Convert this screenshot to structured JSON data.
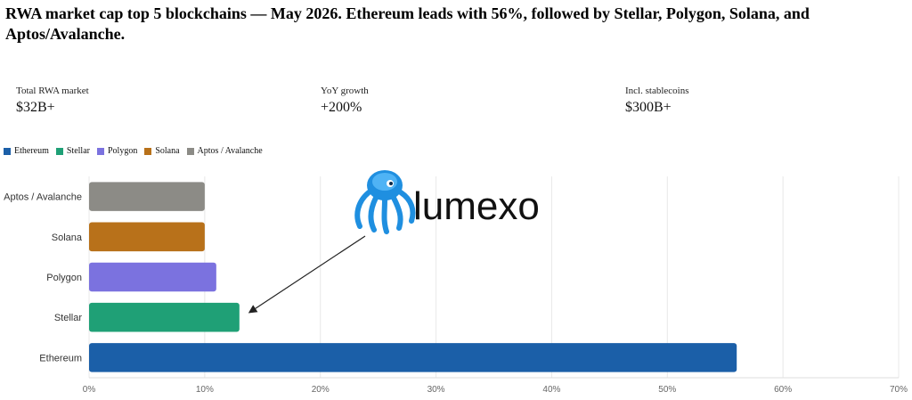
{
  "header": {
    "title": "RWA market cap top 5 blockchains — May 2026. Ethereum leads with 56%, followed by Stellar, Polygon, Solana, and Aptos/Avalanche."
  },
  "stats": [
    {
      "label": "Total RWA market",
      "value": "$32B+"
    },
    {
      "label": "YoY growth",
      "value": "+200%"
    },
    {
      "label": "Incl. stablecoins",
      "value": "$300B+"
    }
  ],
  "logo": {
    "text": "lumexo"
  },
  "chart_data": {
    "type": "bar",
    "orientation": "horizontal",
    "categories": [
      "Ethereum",
      "Stellar",
      "Polygon",
      "Solana",
      "Aptos / Avalanche"
    ],
    "values": [
      56,
      13,
      11,
      10,
      10
    ],
    "colors": [
      "#1b5fa8",
      "#1fa076",
      "#7b72df",
      "#b8711a",
      "#8c8b86"
    ],
    "xlim": [
      0,
      70
    ],
    "xticks": [
      "0%",
      "10%",
      "20%",
      "30%",
      "40%",
      "50%",
      "60%",
      "70%"
    ],
    "grid": true,
    "legend": "top-left"
  }
}
